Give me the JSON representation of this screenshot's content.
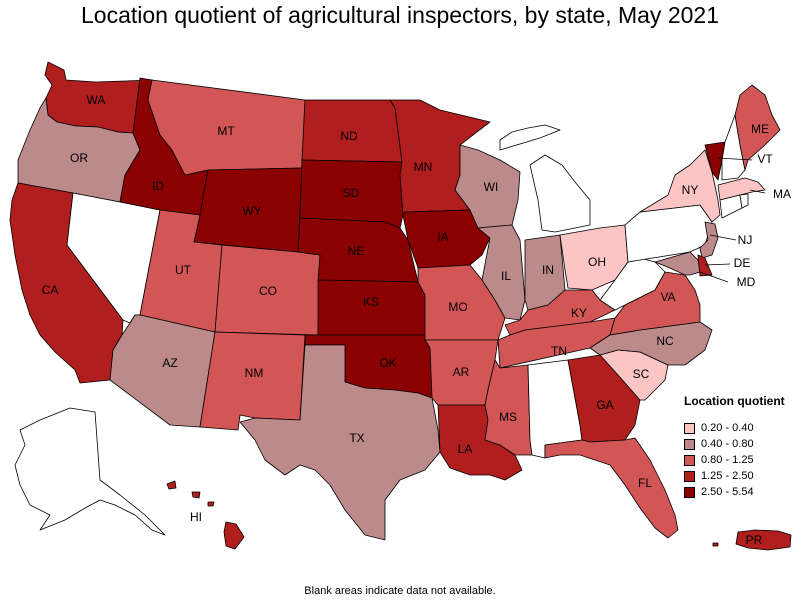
{
  "title": "Location quotient of agricultural inspectors, by state, May 2021",
  "footnote": "Blank areas indicate data not available.",
  "legend": {
    "title": "Location quotient",
    "items": [
      {
        "label": "0.20 - 0.40",
        "color": "#fcc5c5"
      },
      {
        "label": "0.40 - 0.80",
        "color": "#bc8a8a"
      },
      {
        "label": "0.80 - 1.25",
        "color": "#d35656"
      },
      {
        "label": "1.25 - 2.50",
        "color": "#b01e1e"
      },
      {
        "label": "2.50 - 5.54",
        "color": "#8b0000"
      }
    ]
  },
  "states": [
    {
      "abbr": "WA",
      "class": 3
    },
    {
      "abbr": "OR",
      "class": 1
    },
    {
      "abbr": "CA",
      "class": 3
    },
    {
      "abbr": "NV",
      "class": null
    },
    {
      "abbr": "ID",
      "class": 4
    },
    {
      "abbr": "MT",
      "class": 2
    },
    {
      "abbr": "WY",
      "class": 4
    },
    {
      "abbr": "UT",
      "class": 2
    },
    {
      "abbr": "CO",
      "class": 2
    },
    {
      "abbr": "AZ",
      "class": 1
    },
    {
      "abbr": "NM",
      "class": 2
    },
    {
      "abbr": "ND",
      "class": 3
    },
    {
      "abbr": "SD",
      "class": 4
    },
    {
      "abbr": "NE",
      "class": 4
    },
    {
      "abbr": "KS",
      "class": 4
    },
    {
      "abbr": "OK",
      "class": 4
    },
    {
      "abbr": "TX",
      "class": 1
    },
    {
      "abbr": "MN",
      "class": 3
    },
    {
      "abbr": "IA",
      "class": 4
    },
    {
      "abbr": "MO",
      "class": 2
    },
    {
      "abbr": "AR",
      "class": 2
    },
    {
      "abbr": "LA",
      "class": 3
    },
    {
      "abbr": "WI",
      "class": 1
    },
    {
      "abbr": "IL",
      "class": 1
    },
    {
      "abbr": "MI",
      "class": null
    },
    {
      "abbr": "IN",
      "class": 1
    },
    {
      "abbr": "OH",
      "class": 0
    },
    {
      "abbr": "KY",
      "class": 2
    },
    {
      "abbr": "TN",
      "class": 2
    },
    {
      "abbr": "MS",
      "class": 2
    },
    {
      "abbr": "AL",
      "class": null
    },
    {
      "abbr": "GA",
      "class": 3
    },
    {
      "abbr": "FL",
      "class": 2
    },
    {
      "abbr": "SC",
      "class": 0
    },
    {
      "abbr": "NC",
      "class": 1
    },
    {
      "abbr": "VA",
      "class": 2
    },
    {
      "abbr": "WV",
      "class": null
    },
    {
      "abbr": "PA",
      "class": null
    },
    {
      "abbr": "NY",
      "class": 0
    },
    {
      "abbr": "VT",
      "class": 4
    },
    {
      "abbr": "NH",
      "class": null
    },
    {
      "abbr": "ME",
      "class": 2
    },
    {
      "abbr": "MA",
      "class": 0
    },
    {
      "abbr": "CT",
      "class": null
    },
    {
      "abbr": "RI",
      "class": null
    },
    {
      "abbr": "NJ",
      "class": 1
    },
    {
      "abbr": "DE",
      "class": 3
    },
    {
      "abbr": "MD",
      "class": 1
    },
    {
      "abbr": "AK",
      "class": null
    },
    {
      "abbr": "HI",
      "class": 3
    },
    {
      "abbr": "PR",
      "class": 3
    }
  ],
  "labels": {
    "WA": "WA",
    "OR": "OR",
    "CA": "CA",
    "ID": "ID",
    "MT": "MT",
    "WY": "WY",
    "UT": "UT",
    "CO": "CO",
    "AZ": "AZ",
    "NM": "NM",
    "ND": "ND",
    "SD": "SD",
    "NE": "NE",
    "KS": "KS",
    "OK": "OK",
    "TX": "TX",
    "MN": "MN",
    "IA": "IA",
    "MO": "MO",
    "AR": "AR",
    "LA": "LA",
    "WI": "WI",
    "IL": "IL",
    "IN": "IN",
    "OH": "OH",
    "KY": "KY",
    "TN": "TN",
    "MS": "MS",
    "GA": "GA",
    "FL": "FL",
    "SC": "SC",
    "NC": "NC",
    "VA": "VA",
    "NY": "NY",
    "ME": "ME",
    "VT": "VT",
    "MA": "MA",
    "NJ": "NJ",
    "DE": "DE",
    "MD": "MD",
    "HI": "HI",
    "PR": "PR"
  }
}
